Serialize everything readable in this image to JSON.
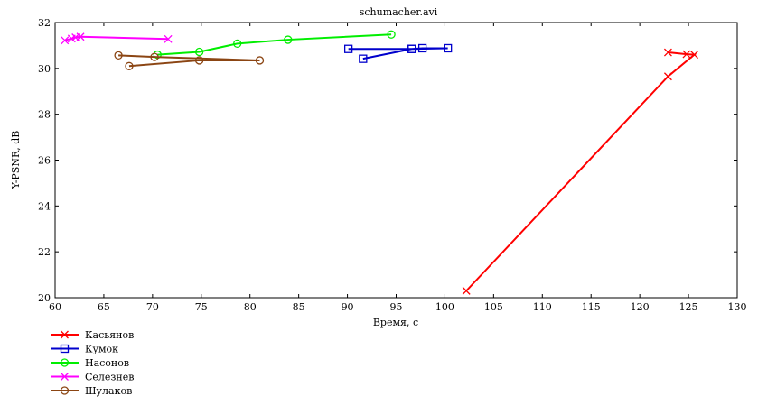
{
  "chart_data": {
    "type": "line",
    "title": "schumacher.avi",
    "xlabel": "Время, с",
    "ylabel": "Y-PSNR, dB",
    "xlim": [
      60,
      130
    ],
    "ylim": [
      20,
      32
    ],
    "xticks": [
      60,
      65,
      70,
      75,
      80,
      85,
      90,
      95,
      100,
      105,
      110,
      115,
      120,
      125,
      130
    ],
    "yticks": [
      20,
      22,
      24,
      26,
      28,
      30,
      32
    ],
    "grid": false,
    "legend_position": "bottom-left",
    "series": [
      {
        "name": "Касьянов",
        "color": "#ff0000",
        "marker": "x",
        "points": [
          [
            102.2,
            20.3
          ],
          [
            122.9,
            29.65
          ],
          [
            125.6,
            30.6
          ],
          [
            124.8,
            30.62
          ],
          [
            122.9,
            30.7
          ]
        ]
      },
      {
        "name": "Кумок",
        "color": "#0000cc",
        "marker": "square",
        "points": [
          [
            90.1,
            30.85
          ],
          [
            96.6,
            30.85
          ],
          [
            97.7,
            30.88
          ],
          [
            100.3,
            30.88
          ],
          [
            96.6,
            30.85
          ],
          [
            91.6,
            30.42
          ]
        ]
      },
      {
        "name": "Насонов",
        "color": "#00ee00",
        "marker": "circle",
        "points": [
          [
            70.5,
            30.6
          ],
          [
            74.8,
            30.72
          ],
          [
            78.7,
            31.08
          ],
          [
            83.9,
            31.25
          ],
          [
            94.5,
            31.48
          ]
        ]
      },
      {
        "name": "Селезнев",
        "color": "#ff00ff",
        "marker": "x",
        "points": [
          [
            61.0,
            31.22
          ],
          [
            61.7,
            31.3
          ],
          [
            62.1,
            31.35
          ],
          [
            62.6,
            31.38
          ],
          [
            71.6,
            31.28
          ]
        ]
      },
      {
        "name": "Шулаков",
        "color": "#8b4513",
        "marker": "circle",
        "points": [
          [
            67.6,
            30.1
          ],
          [
            74.8,
            30.35
          ],
          [
            81.0,
            30.35
          ],
          [
            70.2,
            30.5
          ],
          [
            66.5,
            30.57
          ]
        ]
      }
    ]
  }
}
